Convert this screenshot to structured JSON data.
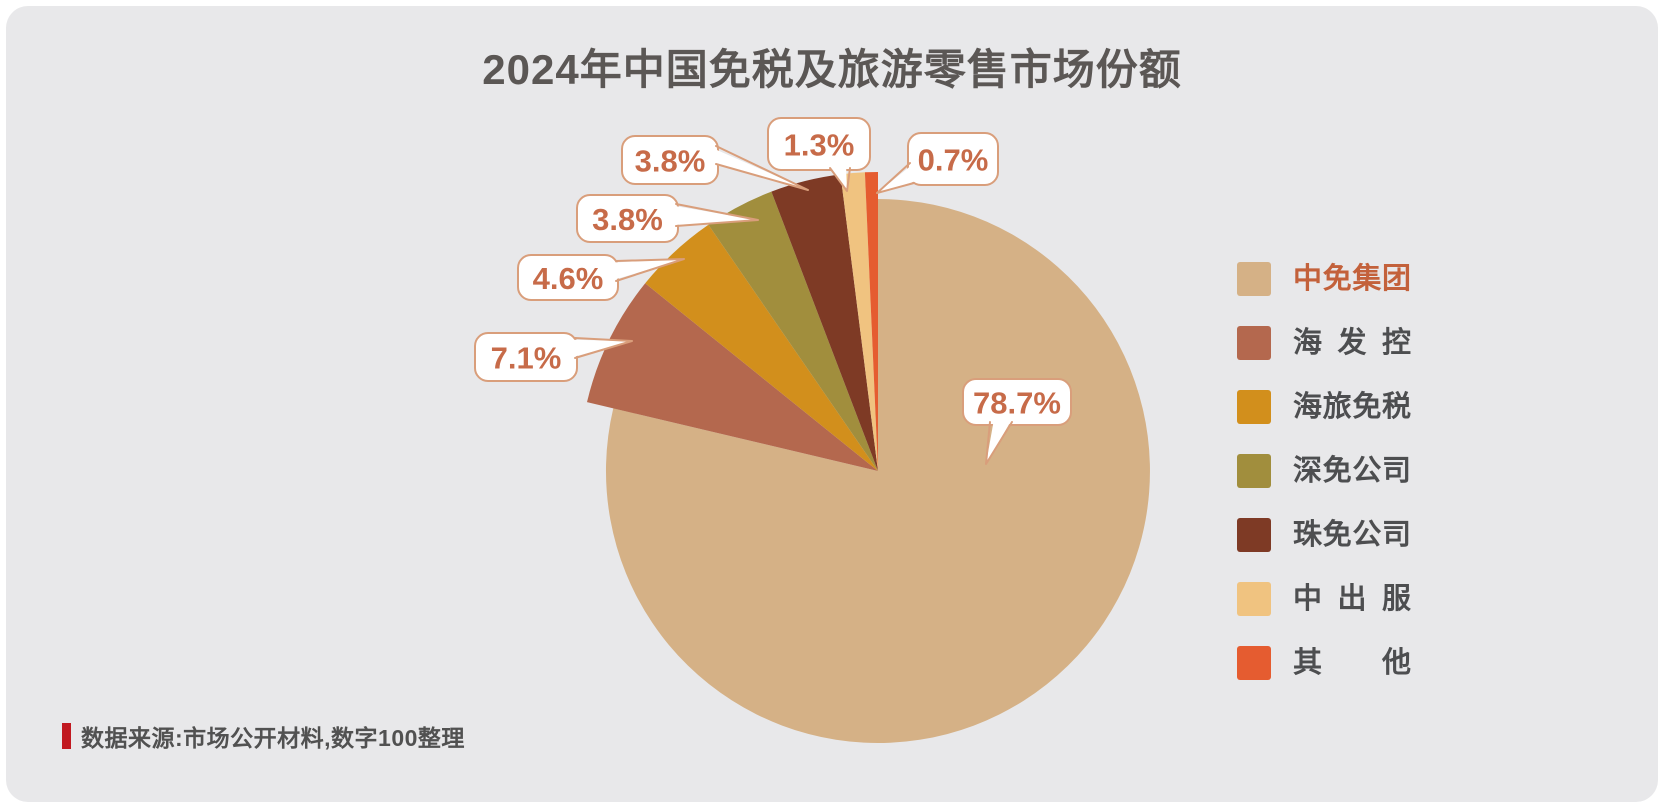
{
  "page": {
    "background": "#FFFFFF",
    "panel_background": "#E8E8EA",
    "title_color": "#5B5755"
  },
  "title": "2024年中国免税及旅游零售市场份额",
  "source_note": {
    "text": "数据来源:市场公开材料,数字100整理",
    "marker_color": "#C11920",
    "text_color": "#515151"
  },
  "chart_data": {
    "type": "pie",
    "title": "2024年中国免税及旅游零售市场份额",
    "unit": "%",
    "direction": "clockwise",
    "start_angle_deg": 0,
    "series": [
      {
        "name": "中免集团",
        "value": 78.7,
        "color": "#D5B186"
      },
      {
        "name": "海发控",
        "value": 7.1,
        "color": "#B4684E"
      },
      {
        "name": "海旅免税",
        "value": 4.6,
        "color": "#D28F1C"
      },
      {
        "name": "深免公司",
        "value": 3.8,
        "color": "#A18E3D"
      },
      {
        "name": "珠免公司",
        "value": 3.8,
        "color": "#7E3A25"
      },
      {
        "name": "中出服",
        "value": 1.3,
        "color": "#F0C380"
      },
      {
        "name": "其他",
        "value": 0.7,
        "color": "#E55C30"
      }
    ],
    "data_labels": [
      "78.7%",
      "7.1%",
      "4.6%",
      "3.8%",
      "3.8%",
      "1.3%",
      "0.7%"
    ],
    "legend_position": "right",
    "legend": [
      "中免集团",
      "海发控",
      "海旅免税",
      "深免公司",
      "珠免公司",
      "中出服",
      "其他"
    ],
    "highlighted_legend_item": "中免集团",
    "legend_text_color": "#4D4E50",
    "legend_highlight_text_color": "#C3613B",
    "callout_style": {
      "fill": "#FFFFFF",
      "border": "#D99E7B",
      "text_color": "#C76B49"
    }
  }
}
